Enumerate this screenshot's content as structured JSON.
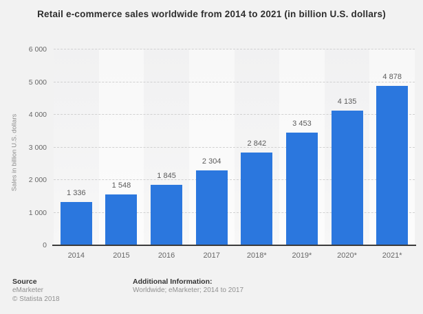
{
  "chart_data": {
    "type": "bar",
    "title": "Retail e-commerce sales worldwide from 2014 to 2021 (in billion U.S. dollars)",
    "categories": [
      "2014",
      "2015",
      "2016",
      "2017",
      "2018*",
      "2019*",
      "2020*",
      "2021*"
    ],
    "values": [
      1336,
      1548,
      1845,
      2304,
      2842,
      3453,
      4135,
      4878
    ],
    "value_labels": [
      "1 336",
      "1 548",
      "1 845",
      "2 304",
      "2 842",
      "3 453",
      "4 135",
      "4 878"
    ],
    "xlabel": "",
    "ylabel": "Sales in billion U.S. dollars",
    "ylim": [
      0,
      6000
    ],
    "ytick_interval": 1000,
    "ytick_labels": [
      "0",
      "1 000",
      "2 000",
      "3 000",
      "4 000",
      "5 000",
      "6 000"
    ],
    "grid": "horizontal-dashed",
    "legend": "none",
    "bar_color": "#2b77de"
  },
  "colors": {
    "background": "#f2f2f2",
    "bar": "#2b77de",
    "axis_line": "#3a3a3a",
    "gridline": "#d0d0d0",
    "title_text": "#2d2d2d",
    "tick_text": "#666666",
    "footer_text": "#909090"
  },
  "footer": {
    "source_heading": "Source",
    "source_lines": [
      "eMarketer",
      "© Statista 2018"
    ],
    "additional_heading": "Additional Information:",
    "additional_lines": [
      "Worldwide; eMarketer; 2014 to 2017"
    ]
  }
}
